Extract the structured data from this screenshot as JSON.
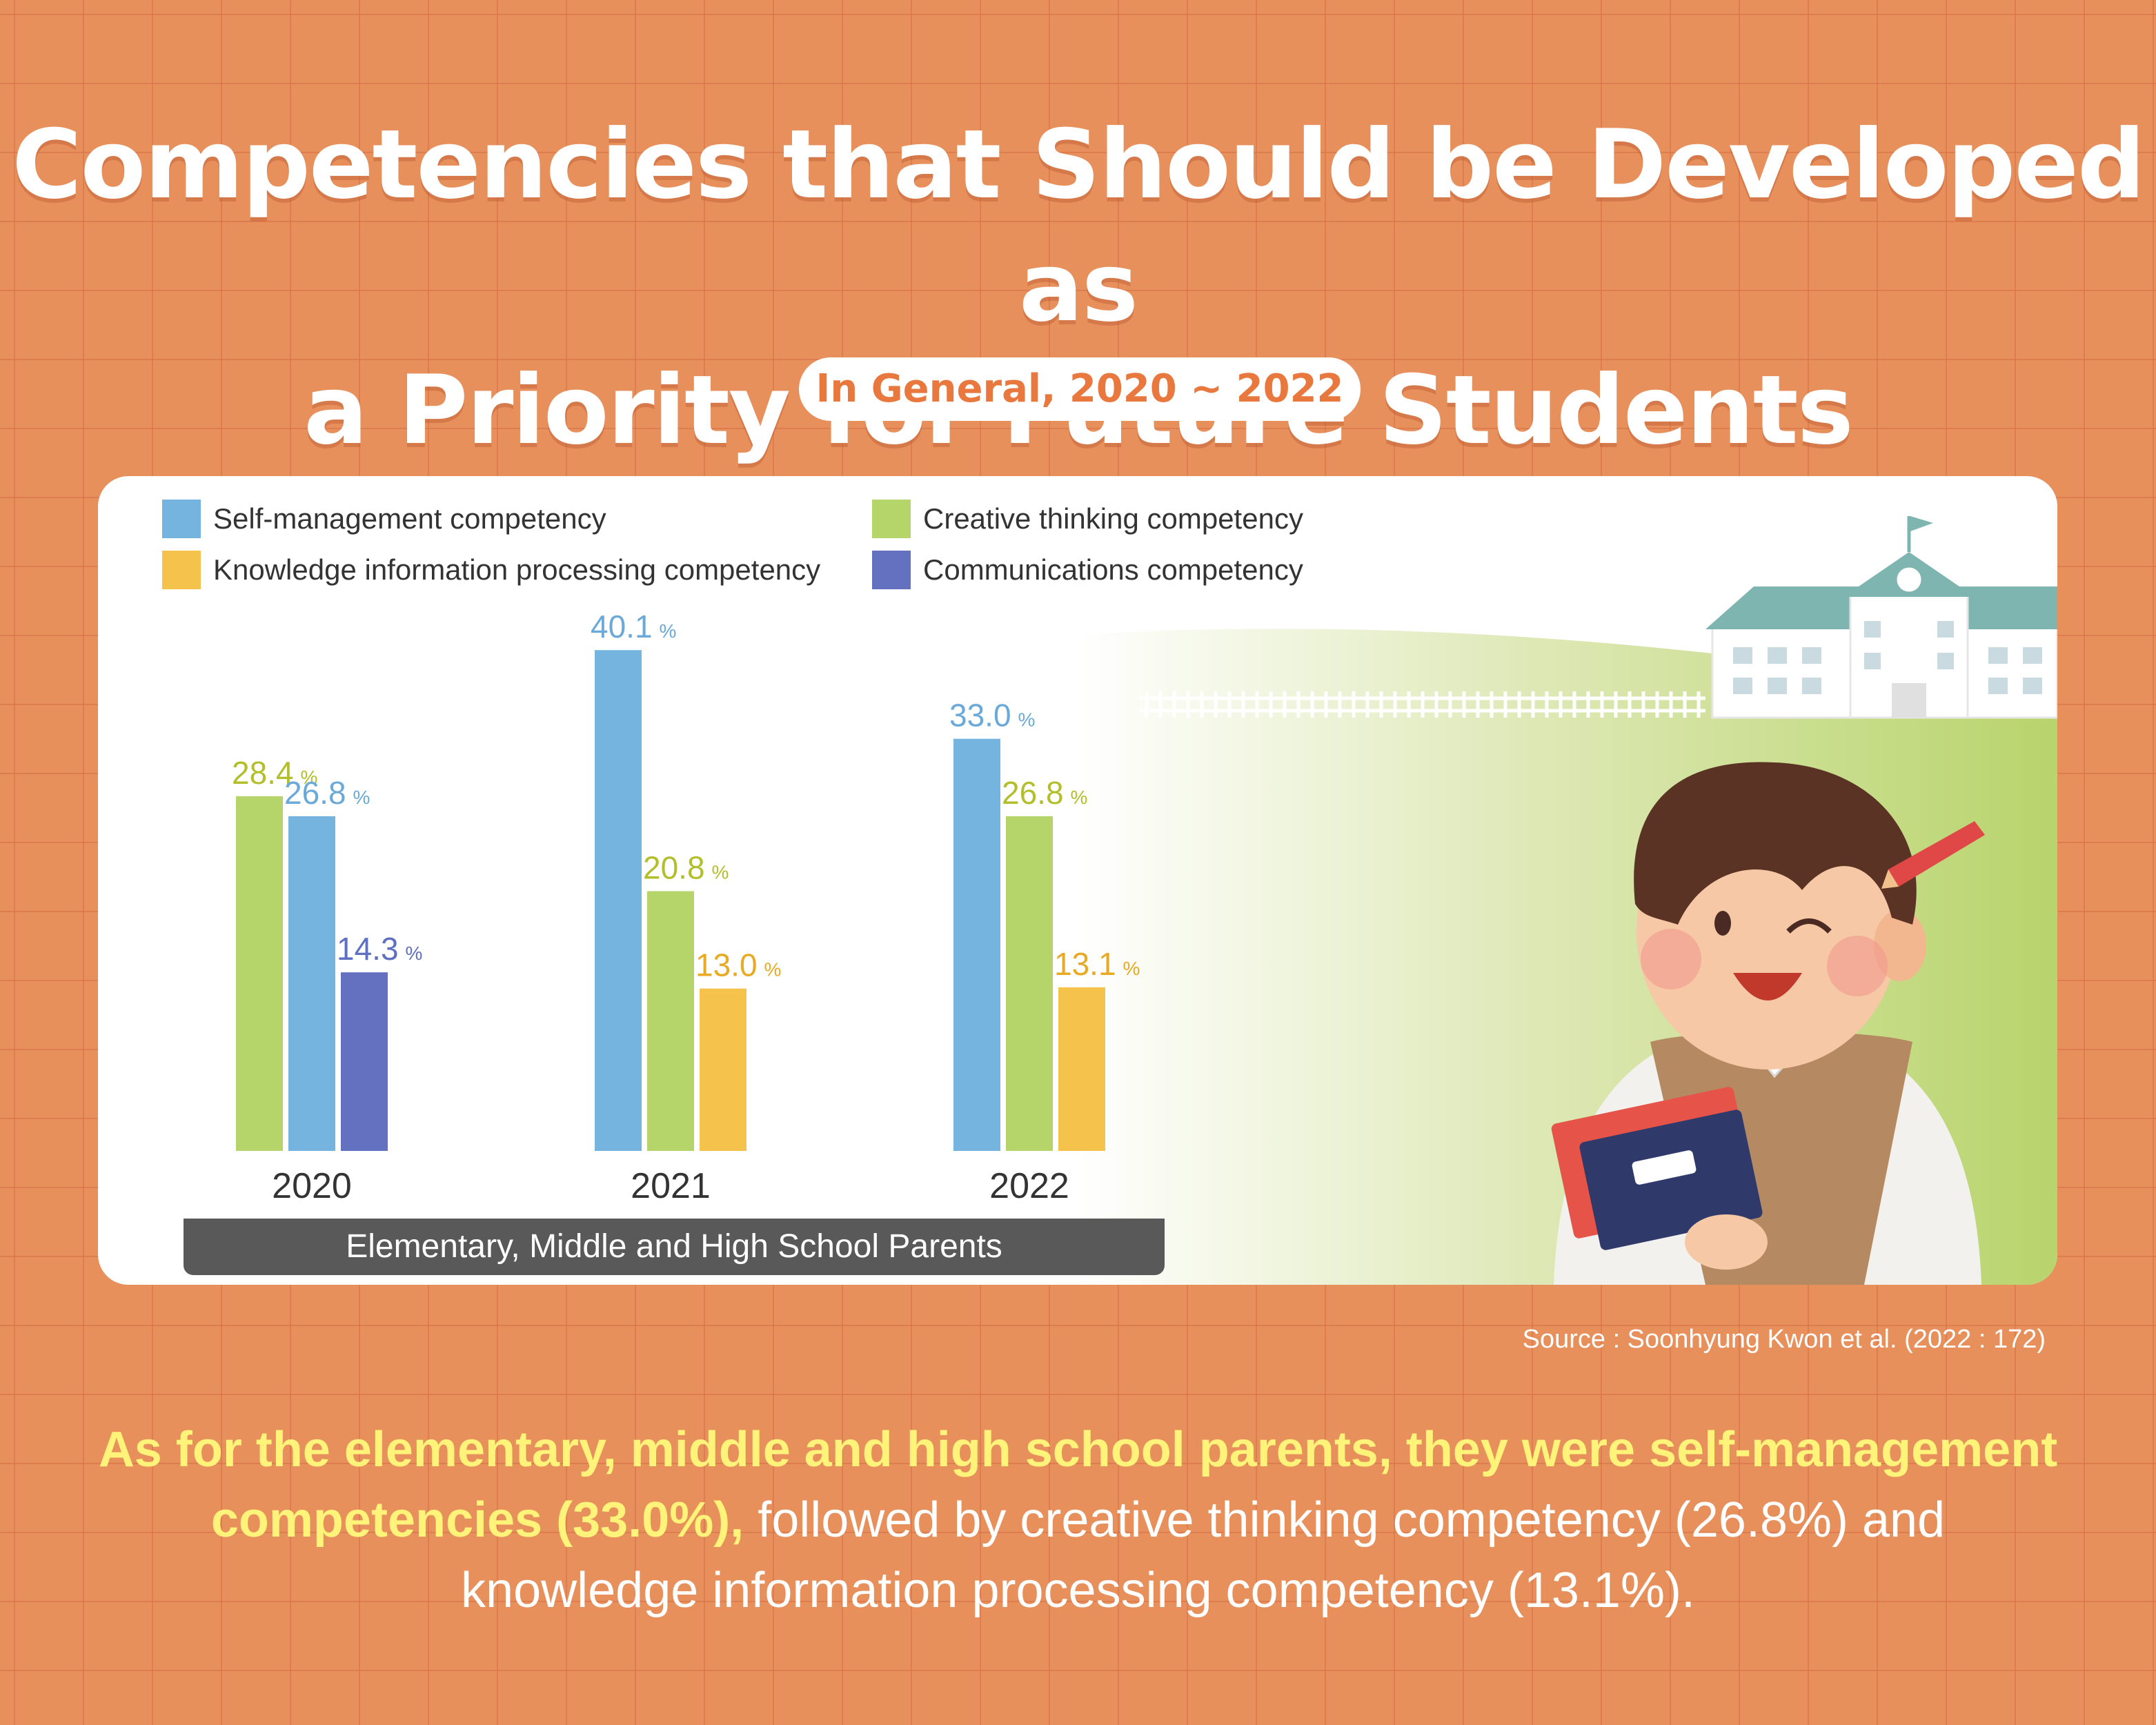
{
  "title": {
    "line1": "Competencies that Should be Developed as",
    "line2": "a Priority for Future Students"
  },
  "subtitle": "In General, 2020 ~ 2022",
  "chart_data": {
    "type": "bar",
    "group_label": "Elementary, Middle and High School Parents",
    "unit": "%",
    "legend": [
      {
        "name": "Self-management competency",
        "color": "#75b4de"
      },
      {
        "name": "Creative thinking competency",
        "color": "#b5d56a"
      },
      {
        "name": "Knowledge information processing competency",
        "color": "#f5c24c"
      },
      {
        "name": "Communications competency",
        "color": "#6471c0"
      }
    ],
    "years": [
      {
        "year": "2020",
        "bars": [
          {
            "series": "Creative thinking competency",
            "value": 28.4,
            "label": "28.4",
            "color": "#b5d56a",
            "label_color": "#b3bf2a"
          },
          {
            "series": "Self-management competency",
            "value": 26.8,
            "label": "26.8",
            "color": "#75b4de",
            "label_color": "#6aa9d8"
          },
          {
            "series": "Communications competency",
            "value": 14.3,
            "label": "14.3",
            "color": "#6471c0",
            "label_color": "#5f6fc2"
          }
        ]
      },
      {
        "year": "2021",
        "bars": [
          {
            "series": "Self-management competency",
            "value": 40.1,
            "label": "40.1",
            "color": "#75b4de",
            "label_color": "#6aa9d8"
          },
          {
            "series": "Creative thinking competency",
            "value": 20.8,
            "label": "20.8",
            "color": "#b5d56a",
            "label_color": "#b3bf2a"
          },
          {
            "series": "Knowledge information processing competency",
            "value": 13.0,
            "label": "13.0",
            "color": "#f5c24c",
            "label_color": "#e8aa22"
          }
        ]
      },
      {
        "year": "2022",
        "bars": [
          {
            "series": "Self-management competency",
            "value": 33.0,
            "label": "33.0",
            "color": "#75b4de",
            "label_color": "#6aa9d8"
          },
          {
            "series": "Creative thinking competency",
            "value": 26.8,
            "label": "26.8",
            "color": "#b5d56a",
            "label_color": "#b3bf2a"
          },
          {
            "series": "Knowledge information processing competency",
            "value": 13.1,
            "label": "13.1",
            "color": "#f5c24c",
            "label_color": "#e8aa22"
          }
        ]
      }
    ]
  },
  "source": "Source :  Soonhyung Kwon et al. (2022 : 172)",
  "caption": {
    "highlight_line1": "As for the elementary, middle and high school parents, they were self-management",
    "highlight_line2": "competencies (33.0%),",
    "rest_line2": " followed by creative thinking competency (26.8%) and",
    "line3": "knowledge information processing competency (13.1%)."
  },
  "colors": {
    "background": "#e8905c",
    "card": "#ffffff",
    "accent": "#e8783e",
    "highlight": "#fff37a",
    "band": "#595959"
  },
  "illustration": {
    "name": "student-with-books-and-school-illustration",
    "objects": [
      "school-building-icon",
      "fence",
      "green-hill",
      "student-boy",
      "pencil-icon",
      "books-icon"
    ]
  }
}
